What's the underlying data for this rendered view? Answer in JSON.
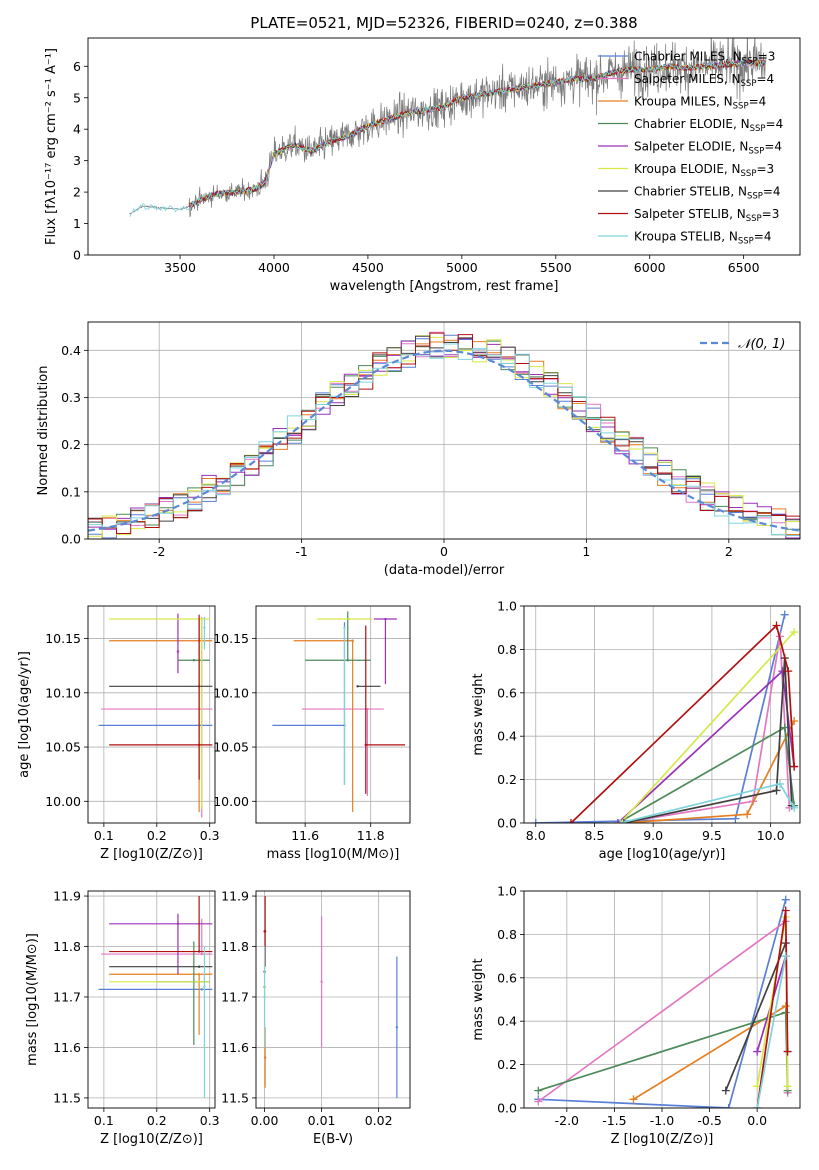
{
  "title": "PLATE=0521, MJD=52326, FIBERID=0240, z=0.388",
  "colors": {
    "Chabrier MILES": "#5a7fd6",
    "Salpeter MILES": "#e377c2",
    "Kroupa MILES": "#e67e22",
    "Chabrier ELODIE": "#4d8a5a",
    "Salpeter ELODIE": "#9b30b8",
    "Kroupa ELODIE": "#d6e84a",
    "Chabrier STELIB": "#404040",
    "Salpeter STELIB": "#b01010",
    "Kroupa STELIB": "#7fd4dc"
  },
  "chart_data": [
    {
      "id": "spectrum",
      "type": "line",
      "title": "PLATE=0521, MJD=52326, FIBERID=0240, z=0.388",
      "xlabel": "wavelength [Angstrom, rest frame]",
      "ylabel": "Flux [fλ10⁻¹⁷ erg cm⁻² s⁻¹ A⁻¹]",
      "xlim": [
        3010,
        6800
      ],
      "ylim": [
        0,
        6.9
      ],
      "xticks": [
        3500,
        4000,
        4500,
        5000,
        5500,
        6000,
        6500
      ],
      "yticks": [
        0,
        1,
        2,
        3,
        4,
        5,
        6
      ],
      "continuum": {
        "x": [
          3200,
          3230,
          3300,
          3400,
          3500,
          3550,
          3600,
          3700,
          3800,
          3900,
          3950,
          4000,
          4100,
          4200,
          4300,
          4400,
          4500,
          4600,
          4700,
          4800,
          4900,
          5000,
          5100,
          5200,
          5300,
          5400,
          5500,
          5600,
          5700,
          5800,
          5900,
          6000,
          6100,
          6200,
          6300,
          6400,
          6500,
          6600
        ],
        "y": [
          0,
          1.3,
          1.55,
          1.5,
          1.45,
          1.55,
          1.75,
          1.95,
          2.0,
          2.1,
          2.3,
          3.2,
          3.5,
          3.3,
          3.6,
          3.8,
          4.1,
          4.3,
          4.5,
          4.6,
          4.7,
          5.0,
          5.1,
          5.2,
          5.3,
          5.4,
          5.5,
          5.6,
          5.6,
          5.8,
          5.9,
          5.9,
          6.0,
          5.95,
          6.0,
          6.05,
          6.1,
          6.1
        ]
      },
      "data_start": 3230,
      "models_start": 3550,
      "legend": [
        "Chabrier MILES, N_SSP=3",
        "Salpeter MILES, N_SSP=4",
        "Kroupa MILES, N_SSP=4",
        "Chabrier ELODIE, N_SSP=4",
        "Salpeter ELODIE, N_SSP=4",
        "Kroupa ELODIE, N_SSP=3",
        "Chabrier STELIB, N_SSP=4",
        "Salpeter STELIB, N_SSP=3",
        "Kroupa STELIB, N_SSP=4"
      ],
      "legend_placement": "right"
    },
    {
      "id": "residuals",
      "type": "bar",
      "xlabel": "(data-model)/error",
      "ylabel": "Normed distribution",
      "xlim": [
        -2.5,
        2.5
      ],
      "ylim": [
        0,
        0.46
      ],
      "xticks": [
        -2,
        -1,
        0,
        1,
        2
      ],
      "yticks": [
        0.0,
        0.1,
        0.2,
        0.3,
        0.4
      ],
      "grid": true,
      "bin_width": 0.1,
      "legend": "𝒩(0, 1)",
      "legend_placement": "top-right"
    },
    {
      "id": "age_vs_Z",
      "type": "scatter",
      "xlabel": "Z [log10(Z/Z⊙)]",
      "ylabel": "age  [log10(age/yr)]",
      "xlim": [
        0.07,
        0.31
      ],
      "ylim": [
        9.98,
        10.18
      ],
      "xticks": [
        0.1,
        0.2,
        0.3
      ],
      "yticks": [
        10.0,
        10.05,
        10.1,
        10.15
      ],
      "grid": true,
      "points": [
        {
          "model": "Chabrier MILES",
          "x": 0.285,
          "y": 10.07,
          "xerr": [
            0.195,
            0.02
          ],
          "yerr": [
            0.0,
            0.0
          ]
        },
        {
          "model": "Salpeter MILES",
          "x": 0.285,
          "y": 10.085,
          "xerr": [
            0.19,
            0.02
          ],
          "yerr": [
            0.1,
            0.085
          ]
        },
        {
          "model": "Kroupa MILES",
          "x": 0.28,
          "y": 10.148,
          "xerr": [
            0.17,
            0.025
          ],
          "yerr": [
            0.158,
            0.02
          ]
        },
        {
          "model": "Chabrier ELODIE",
          "x": 0.27,
          "y": 10.13,
          "xerr": [
            0.03,
            0.03
          ],
          "yerr": [
            0.0,
            0.0
          ]
        },
        {
          "model": "Salpeter ELODIE",
          "x": 0.24,
          "y": 10.138,
          "xerr": [
            0.0,
            0.0
          ],
          "yerr": [
            0.02,
            0.035
          ]
        },
        {
          "model": "Kroupa ELODIE",
          "x": 0.285,
          "y": 10.168,
          "xerr": [
            0.175,
            0.015
          ],
          "yerr": [
            0.175,
            0.0
          ]
        },
        {
          "model": "Chabrier STELIB",
          "x": 0.28,
          "y": 10.106,
          "xerr": [
            0.17,
            0.025
          ],
          "yerr": [
            0.0,
            0.0
          ]
        },
        {
          "model": "Salpeter STELIB",
          "x": 0.28,
          "y": 10.052,
          "xerr": [
            0.17,
            0.025
          ],
          "yerr": [
            0.032,
            0.12
          ]
        },
        {
          "model": "Kroupa STELIB",
          "x": 0.29,
          "y": 10.16,
          "xerr": [
            0.0,
            0.0
          ],
          "yerr": [
            0.02,
            0.01
          ]
        }
      ]
    },
    {
      "id": "age_vs_mass",
      "type": "scatter",
      "xlabel": "mass [log10(M/M⊙)]",
      "ylabel": "",
      "xlim": [
        11.45,
        11.92
      ],
      "ylim": [
        9.98,
        10.18
      ],
      "xticks": [
        11.6,
        11.8
      ],
      "yticks": [
        10.0,
        10.05,
        10.1,
        10.15
      ],
      "grid": true,
      "points": [
        {
          "model": "Chabrier MILES",
          "x": 11.72,
          "y": 10.07,
          "xerr": [
            0.22,
            0.0
          ],
          "yerr": [
            0.055,
            0.095
          ]
        },
        {
          "model": "Salpeter MILES",
          "x": 11.79,
          "y": 10.085,
          "xerr": [
            0.2,
            0.05
          ],
          "yerr": [
            0.08,
            0.0
          ]
        },
        {
          "model": "Kroupa MILES",
          "x": 11.745,
          "y": 10.148,
          "xerr": [
            0.18,
            0.0
          ],
          "yerr": [
            0.158,
            0.0
          ]
        },
        {
          "model": "Chabrier ELODIE",
          "x": 11.73,
          "y": 10.13,
          "xerr": [
            0.13,
            0.07
          ],
          "yerr": [
            0.0,
            0.045
          ]
        },
        {
          "model": "Salpeter ELODIE",
          "x": 11.845,
          "y": 10.168,
          "xerr": [
            0.035,
            0.035
          ],
          "yerr": [
            0.06,
            0.0
          ]
        },
        {
          "model": "Kroupa ELODIE",
          "x": 11.735,
          "y": 10.168,
          "xerr": [
            0.1,
            0.07
          ],
          "yerr": [
            0.0,
            0.0
          ]
        },
        {
          "model": "Chabrier STELIB",
          "x": 11.76,
          "y": 10.106,
          "xerr": [
            0.0,
            0.07
          ],
          "yerr": [
            0.0,
            0.0
          ]
        },
        {
          "model": "Salpeter STELIB",
          "x": 11.785,
          "y": 10.052,
          "xerr": [
            0.0,
            0.12
          ],
          "yerr": [
            0.045,
            0.11
          ]
        },
        {
          "model": "Kroupa STELIB",
          "x": 11.72,
          "y": 10.16,
          "xerr": [
            0.0,
            0.0
          ],
          "yerr": [
            0.145,
            0.0
          ]
        }
      ]
    },
    {
      "id": "weight_vs_age",
      "type": "line",
      "xlabel": "age  [log10(age/yr)]",
      "ylabel": "mass weight",
      "xlim": [
        7.9,
        10.25
      ],
      "ylim": [
        0,
        1.0
      ],
      "xticks": [
        8.0,
        8.5,
        9.0,
        9.5,
        10.0
      ],
      "yticks": [
        0.0,
        0.2,
        0.4,
        0.6,
        0.8,
        1.0
      ],
      "grid": true,
      "series": [
        {
          "model": "Chabrier MILES",
          "x": [
            8.0,
            9.7,
            10.12
          ],
          "y": [
            0.0,
            0.02,
            0.96
          ]
        },
        {
          "model": "Salpeter MILES",
          "x": [
            8.72,
            9.85,
            10.08,
            10.16
          ],
          "y": [
            0.0,
            0.1,
            0.86,
            0.07
          ]
        },
        {
          "model": "Kroupa MILES",
          "x": [
            8.75,
            9.8,
            10.2
          ],
          "y": [
            0.0,
            0.04,
            0.47
          ]
        },
        {
          "model": "Chabrier ELODIE",
          "x": [
            8.7,
            10.12,
            10.2
          ],
          "y": [
            0.0,
            0.44,
            0.08
          ]
        },
        {
          "model": "Salpeter ELODIE",
          "x": [
            8.7,
            10.1,
            10.2
          ],
          "y": [
            0.0,
            0.7,
            0.26
          ]
        },
        {
          "model": "Kroupa ELODIE",
          "x": [
            8.72,
            10.2
          ],
          "y": [
            0.0,
            0.88
          ]
        },
        {
          "model": "Chabrier STELIB",
          "x": [
            8.75,
            10.05,
            10.12,
            10.18
          ],
          "y": [
            0.0,
            0.15,
            0.76,
            0.08
          ]
        },
        {
          "model": "Salpeter STELIB",
          "x": [
            8.3,
            10.05,
            10.15,
            10.2
          ],
          "y": [
            0.0,
            0.91,
            0.7,
            0.26
          ]
        },
        {
          "model": "Kroupa STELIB",
          "x": [
            8.72,
            10.08,
            10.2
          ],
          "y": [
            0.0,
            0.18,
            0.07
          ]
        }
      ]
    },
    {
      "id": "mass_vs_Z",
      "type": "scatter",
      "xlabel": "Z [log10(Z/Z⊙)]",
      "ylabel": "mass [log10(M/M⊙)]",
      "xlim": [
        0.07,
        0.31
      ],
      "ylim": [
        11.48,
        11.91
      ],
      "xticks": [
        0.1,
        0.2,
        0.3
      ],
      "yticks": [
        11.5,
        11.6,
        11.7,
        11.8,
        11.9
      ],
      "grid": true,
      "points": [
        {
          "model": "Chabrier MILES",
          "x": 0.285,
          "y": 11.715,
          "xerr": [
            0.195,
            0.02
          ],
          "yerr": [
            0.0,
            0.0
          ]
        },
        {
          "model": "Salpeter MILES",
          "x": 0.285,
          "y": 11.785,
          "xerr": [
            0.19,
            0.02
          ],
          "yerr": [
            0.0,
            0.07
          ]
        },
        {
          "model": "Kroupa MILES",
          "x": 0.28,
          "y": 11.745,
          "xerr": [
            0.17,
            0.025
          ],
          "yerr": [
            0.12,
            0.0
          ]
        },
        {
          "model": "Chabrier ELODIE",
          "x": 0.27,
          "y": 11.73,
          "xerr": [
            0.07,
            0.03
          ],
          "yerr": [
            0.125,
            0.08
          ]
        },
        {
          "model": "Salpeter ELODIE",
          "x": 0.24,
          "y": 11.845,
          "xerr": [
            0.13,
            0.065
          ],
          "yerr": [
            0.1,
            0.02
          ]
        },
        {
          "model": "Kroupa ELODIE",
          "x": 0.285,
          "y": 11.73,
          "xerr": [
            0.175,
            0.015
          ],
          "yerr": [
            0.0,
            0.0
          ]
        },
        {
          "model": "Chabrier STELIB",
          "x": 0.28,
          "y": 11.76,
          "xerr": [
            0.17,
            0.025
          ],
          "yerr": [
            0.0,
            0.0
          ]
        },
        {
          "model": "Salpeter STELIB",
          "x": 0.28,
          "y": 11.79,
          "xerr": [
            0.17,
            0.025
          ],
          "yerr": [
            0.0,
            0.11
          ]
        },
        {
          "model": "Kroupa STELIB",
          "x": 0.29,
          "y": 11.72,
          "xerr": [
            0.0,
            0.0
          ],
          "yerr": [
            0.22,
            0.08
          ]
        }
      ]
    },
    {
      "id": "mass_vs_ebv",
      "type": "scatter",
      "xlabel": "E(B-V)",
      "ylabel": "",
      "xlim": [
        -0.0015,
        0.0255
      ],
      "ylim": [
        11.48,
        11.91
      ],
      "xticks": [
        0.0,
        0.01,
        0.02
      ],
      "yticks": [
        11.5,
        11.6,
        11.7,
        11.8,
        11.9
      ],
      "grid": true,
      "points": [
        {
          "model": "Chabrier MILES",
          "x": 0.0232,
          "y": 11.64,
          "xerr": [
            0.0,
            0.0
          ],
          "yerr": [
            0.14,
            0.14
          ]
        },
        {
          "model": "Salpeter MILES",
          "x": 0.01,
          "y": 11.73,
          "xerr": [
            0.0,
            0.0
          ],
          "yerr": [
            0.13,
            0.13
          ]
        },
        {
          "model": "Kroupa MILES",
          "x": 0.0001,
          "y": 11.58,
          "xerr": [
            0.0,
            0.0
          ],
          "yerr": [
            0.06,
            0.06
          ]
        },
        {
          "model": "Chabrier ELODIE",
          "x": 0.0,
          "y": 11.72,
          "xerr": [
            0.0,
            0.0
          ],
          "yerr": [
            0.0,
            0.0
          ]
        },
        {
          "model": "Salpeter ELODIE",
          "x": 0.0,
          "y": 11.83,
          "xerr": [
            0.0,
            0.0
          ],
          "yerr": [
            0.0,
            0.0
          ]
        },
        {
          "model": "Kroupa ELODIE",
          "x": 0.0,
          "y": 11.7,
          "xerr": [
            0.0,
            0.0
          ],
          "yerr": [
            0.08,
            0.08
          ]
        },
        {
          "model": "Chabrier STELIB",
          "x": 0.0,
          "y": 11.75,
          "xerr": [
            0.0,
            0.0
          ],
          "yerr": [
            0.0,
            0.0
          ]
        },
        {
          "model": "Salpeter STELIB",
          "x": 0.0001,
          "y": 11.83,
          "xerr": [
            0.0,
            0.0
          ],
          "yerr": [
            0.07,
            0.07
          ]
        },
        {
          "model": "Kroupa STELIB",
          "x": 0.0,
          "y": 11.7,
          "xerr": [
            0.0,
            0.0
          ],
          "yerr": [
            0.1,
            0.1
          ]
        }
      ]
    },
    {
      "id": "weight_vs_Z",
      "type": "line",
      "xlabel": "Z [log10(Z/Z⊙)]",
      "ylabel": "mass weight",
      "xlim": [
        -2.45,
        0.45
      ],
      "ylim": [
        0,
        1.0
      ],
      "xticks": [
        -2.0,
        -1.5,
        -1.0,
        -0.5,
        0.0
      ],
      "yticks": [
        0.0,
        0.2,
        0.4,
        0.6,
        0.8,
        1.0
      ],
      "grid": true,
      "series": [
        {
          "model": "Chabrier MILES",
          "x": [
            -2.3,
            -0.3,
            0.3
          ],
          "y": [
            0.04,
            0.0,
            0.96
          ]
        },
        {
          "model": "Salpeter MILES",
          "x": [
            -2.3,
            0.3,
            0.32
          ],
          "y": [
            0.03,
            0.86,
            0.07
          ]
        },
        {
          "model": "Kroupa MILES",
          "x": [
            -1.3,
            0.3
          ],
          "y": [
            0.04,
            0.47
          ]
        },
        {
          "model": "Chabrier ELODIE",
          "x": [
            -2.3,
            0.3,
            0.32
          ],
          "y": [
            0.08,
            0.44,
            0.08
          ]
        },
        {
          "model": "Salpeter ELODIE",
          "x": [
            0.0,
            0.3
          ],
          "y": [
            0.26,
            0.7
          ]
        },
        {
          "model": "Kroupa ELODIE",
          "x": [
            0.0,
            0.3,
            0.32
          ],
          "y": [
            0.1,
            0.88,
            0.1
          ]
        },
        {
          "model": "Chabrier STELIB",
          "x": [
            -0.33,
            0.3
          ],
          "y": [
            0.08,
            0.76
          ]
        },
        {
          "model": "Salpeter STELIB",
          "x": [
            0.0,
            0.3,
            0.32
          ],
          "y": [
            0.0,
            0.91,
            0.26
          ]
        },
        {
          "model": "Kroupa STELIB",
          "x": [
            0.0,
            0.3
          ],
          "y": [
            0.0,
            0.7
          ]
        }
      ]
    }
  ]
}
